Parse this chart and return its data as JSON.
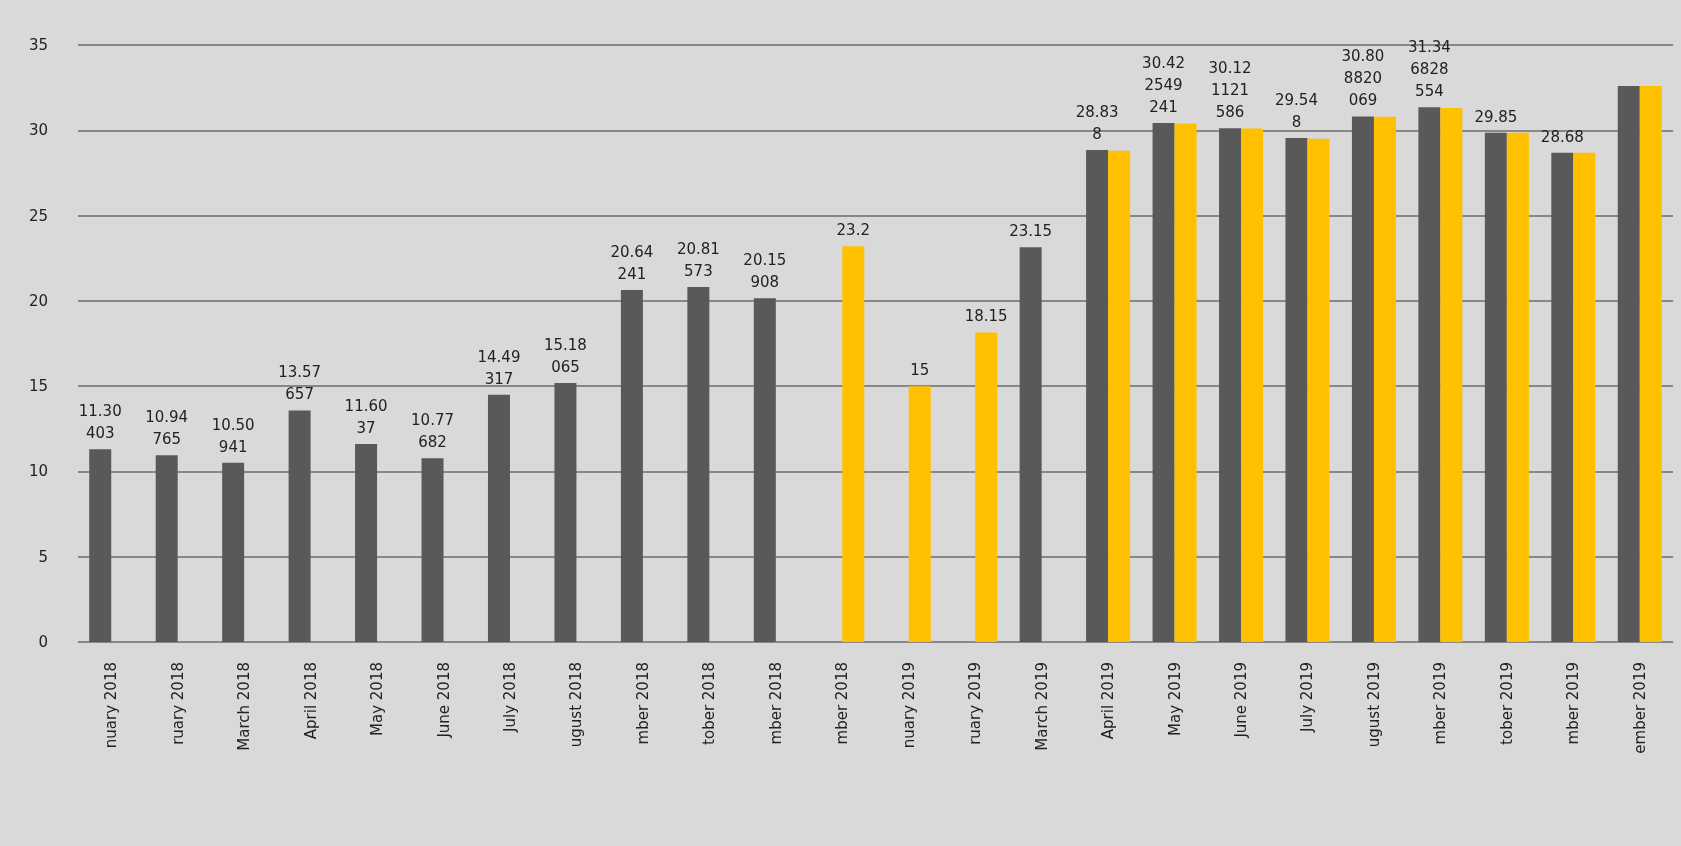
{
  "chart_data": {
    "type": "bar",
    "categories": [
      "nuary 2018",
      "ruary 2018",
      "March 2018",
      "April 2018",
      "May 2018",
      "June 2018",
      "July 2018",
      "ugust 2018",
      "mber 2018",
      "tober 2018",
      "mber 2018",
      "mber 2018",
      "nuary 2019",
      "ruary 2019",
      "March 2019",
      "April 2019",
      "May 2019",
      "June 2019",
      "July 2019",
      "ugust 2019",
      "mber 2019",
      "tober 2019",
      "mber 2019",
      "ember 2019"
    ],
    "series": [
      {
        "color": "#595959",
        "values": [
          11.30403,
          10.94765,
          10.50941,
          13.57657,
          11.6037,
          10.77682,
          14.49317,
          15.18065,
          20.64241,
          20.81573,
          20.15908,
          null,
          null,
          null,
          23.15,
          28.838,
          30.422549241,
          30.121121586,
          29.548,
          30.808820069,
          31.346828554,
          29.85,
          28.68,
          32.6
        ],
        "value_labels": [
          "11.30403",
          "10.94765",
          "10.50941",
          "13.57657",
          "11.6037",
          "10.77682",
          "14.49317",
          "15.18065",
          "20.64241",
          "20.81573",
          "20.15908",
          null,
          null,
          null,
          "23.15",
          "28.838",
          "30.422549241",
          "30.121121586",
          "29.548",
          "30.808820069",
          "31.346828554",
          "29.85",
          "28.68",
          null
        ]
      },
      {
        "color": "#ffc000",
        "values": [
          null,
          null,
          null,
          null,
          null,
          null,
          null,
          null,
          null,
          null,
          null,
          23.2,
          15,
          18.15,
          null,
          28.8,
          30.4,
          30.1,
          29.5,
          30.8,
          31.3,
          29.85,
          28.68,
          32.6
        ],
        "value_labels": [
          null,
          null,
          null,
          null,
          null,
          null,
          null,
          null,
          null,
          null,
          null,
          "23.2",
          "15",
          "18.15",
          null,
          null,
          null,
          null,
          null,
          null,
          null,
          null,
          null,
          null
        ]
      }
    ],
    "ylim": [
      0,
      35
    ],
    "yticks": [
      0,
      5,
      10,
      15,
      20,
      25,
      30,
      35
    ],
    "grid": "y"
  }
}
